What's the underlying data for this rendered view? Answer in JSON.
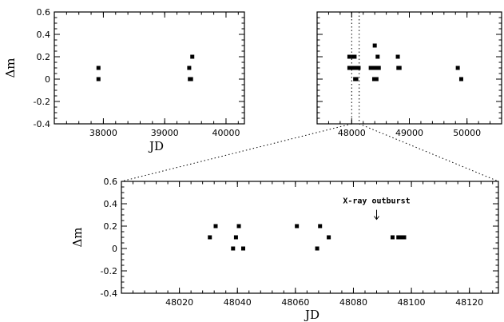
{
  "chart_data": [
    {
      "id": "top-left",
      "type": "scatter",
      "xlabel": "JD",
      "ylabel": "Δm",
      "xlim": [
        37200,
        40300
      ],
      "ylim": [
        -0.4,
        0.6
      ],
      "xticks": [
        38000,
        39000,
        40000
      ],
      "xtick_labels": [
        "38000",
        "39000",
        "40000"
      ],
      "yticks": [
        -0.4,
        -0.2,
        0,
        0.2,
        0.4,
        0.6
      ],
      "ytick_labels": [
        "-0.4",
        "-0.2",
        "0",
        "0.2",
        "0.4",
        "0.6"
      ],
      "points": [
        {
          "x": 37920,
          "y": 0.1
        },
        {
          "x": 37920,
          "y": 0.0
        },
        {
          "x": 39400,
          "y": 0.1
        },
        {
          "x": 39410,
          "y": 0.0
        },
        {
          "x": 39430,
          "y": 0.0
        },
        {
          "x": 39450,
          "y": 0.2
        }
      ]
    },
    {
      "id": "top-right",
      "type": "scatter",
      "xlabel": "",
      "ylabel": "",
      "xlim": [
        47400,
        50600
      ],
      "ylim": [
        -0.4,
        0.6
      ],
      "xticks": [
        48000,
        49000,
        50000
      ],
      "xtick_labels": [
        "48000",
        "49000",
        "50000"
      ],
      "yticks": [
        -0.4,
        -0.2,
        0,
        0.2,
        0.4,
        0.6
      ],
      "ytick_labels": [],
      "highlight_range": [
        48000,
        48130
      ],
      "points": [
        {
          "x": 47960,
          "y": 0.2
        },
        {
          "x": 47960,
          "y": 0.1
        },
        {
          "x": 48000,
          "y": 0.1
        },
        {
          "x": 48030,
          "y": 0.2
        },
        {
          "x": 48040,
          "y": 0.1
        },
        {
          "x": 48050,
          "y": 0.2
        },
        {
          "x": 48060,
          "y": 0.0
        },
        {
          "x": 48070,
          "y": 0.1
        },
        {
          "x": 48080,
          "y": 0.0
        },
        {
          "x": 48095,
          "y": 0.1
        },
        {
          "x": 48110,
          "y": 0.1
        },
        {
          "x": 48120,
          "y": 0.1
        },
        {
          "x": 48330,
          "y": 0.1
        },
        {
          "x": 48360,
          "y": 0.1
        },
        {
          "x": 48390,
          "y": 0.0
        },
        {
          "x": 48400,
          "y": 0.3
        },
        {
          "x": 48410,
          "y": 0.1
        },
        {
          "x": 48430,
          "y": 0.0
        },
        {
          "x": 48450,
          "y": 0.2
        },
        {
          "x": 48470,
          "y": 0.1
        },
        {
          "x": 48800,
          "y": 0.2
        },
        {
          "x": 48810,
          "y": 0.1
        },
        {
          "x": 48830,
          "y": 0.1
        },
        {
          "x": 49840,
          "y": 0.1
        },
        {
          "x": 49900,
          "y": 0.0
        }
      ]
    },
    {
      "id": "bottom",
      "type": "scatter",
      "xlabel": "JD",
      "ylabel": "Δm",
      "xlim": [
        48000,
        48130
      ],
      "ylim": [
        -0.4,
        0.6
      ],
      "xticks": [
        48020,
        48040,
        48060,
        48080,
        48100,
        48120
      ],
      "xtick_labels": [
        "48020",
        "48040",
        "48060",
        "48080",
        "48100",
        "48120"
      ],
      "yticks": [
        -0.4,
        -0.2,
        0,
        0.2,
        0.4,
        0.6
      ],
      "ytick_labels": [
        "-0.4",
        "-0.2",
        "0",
        "0.2",
        "0.4",
        "0.6"
      ],
      "annotation": {
        "text": "X-ray outburst",
        "x": 48088,
        "y": 0.26
      },
      "points": [
        {
          "x": 48030.5,
          "y": 0.1
        },
        {
          "x": 48032.5,
          "y": 0.2
        },
        {
          "x": 48038.5,
          "y": 0.0
        },
        {
          "x": 48039.5,
          "y": 0.1
        },
        {
          "x": 48040.5,
          "y": 0.2
        },
        {
          "x": 48042,
          "y": 0.0
        },
        {
          "x": 48060.5,
          "y": 0.2
        },
        {
          "x": 48067.5,
          "y": 0.0
        },
        {
          "x": 48068.5,
          "y": 0.2
        },
        {
          "x": 48071.5,
          "y": 0.1
        },
        {
          "x": 48093.5,
          "y": 0.1
        },
        {
          "x": 48095.5,
          "y": 0.1
        },
        {
          "x": 48096.5,
          "y": 0.1
        },
        {
          "x": 48097.5,
          "y": 0.1
        }
      ]
    }
  ]
}
